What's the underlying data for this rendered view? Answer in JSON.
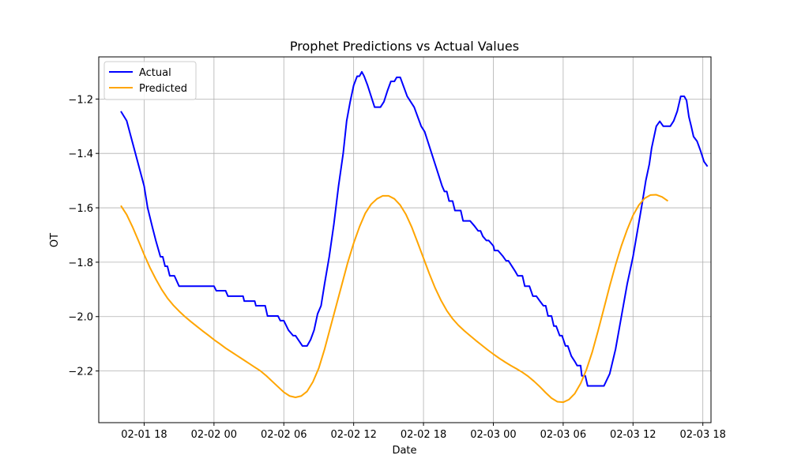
{
  "chart_data": {
    "type": "line",
    "title": "Prophet Predictions vs Actual Values",
    "xlabel": "Date",
    "ylabel": "OT",
    "grid": true,
    "legend_position": "top-left",
    "xlim": [
      14.1,
      66.7
    ],
    "ylim": [
      -2.39,
      -1.045
    ],
    "x_ticks": [
      {
        "value": 18,
        "label": "02-01 18"
      },
      {
        "value": 24,
        "label": "02-02 00"
      },
      {
        "value": 30,
        "label": "02-02 06"
      },
      {
        "value": 36,
        "label": "02-02 12"
      },
      {
        "value": 42,
        "label": "02-02 18"
      },
      {
        "value": 48,
        "label": "02-03 00"
      },
      {
        "value": 54,
        "label": "02-03 06"
      },
      {
        "value": 60,
        "label": "02-03 12"
      },
      {
        "value": 66,
        "label": "02-03 18"
      }
    ],
    "y_ticks": [
      {
        "value": -2.2,
        "label": "−2.2"
      },
      {
        "value": -2.0,
        "label": "−2.0"
      },
      {
        "value": -1.8,
        "label": "−1.8"
      },
      {
        "value": -1.6,
        "label": "−1.6"
      },
      {
        "value": -1.4,
        "label": "−1.4"
      },
      {
        "value": -1.2,
        "label": "−1.2"
      }
    ],
    "series": [
      {
        "name": "Actual",
        "color": "#0000ff",
        "points": [
          [
            16.0,
            -1.245
          ],
          [
            16.5,
            -1.28
          ],
          [
            17.0,
            -1.36
          ],
          [
            17.5,
            -1.44
          ],
          [
            18.0,
            -1.52
          ],
          [
            18.3,
            -1.6
          ],
          [
            18.7,
            -1.67
          ],
          [
            19.0,
            -1.72
          ],
          [
            19.4,
            -1.78
          ],
          [
            19.6,
            -1.78
          ],
          [
            19.8,
            -1.815
          ],
          [
            20.0,
            -1.815
          ],
          [
            20.2,
            -1.85
          ],
          [
            20.6,
            -1.85
          ],
          [
            21.0,
            -1.888
          ],
          [
            22.0,
            -1.888
          ],
          [
            23.0,
            -1.888
          ],
          [
            24.0,
            -1.888
          ],
          [
            24.2,
            -1.905
          ],
          [
            25.0,
            -1.905
          ],
          [
            25.2,
            -1.925
          ],
          [
            26.0,
            -1.925
          ],
          [
            26.5,
            -1.925
          ],
          [
            26.6,
            -1.943
          ],
          [
            27.0,
            -1.943
          ],
          [
            27.5,
            -1.943
          ],
          [
            27.6,
            -1.96
          ],
          [
            28.0,
            -1.96
          ],
          [
            28.4,
            -1.96
          ],
          [
            28.6,
            -1.998
          ],
          [
            29.0,
            -1.998
          ],
          [
            29.5,
            -1.998
          ],
          [
            29.7,
            -2.015
          ],
          [
            30.0,
            -2.015
          ],
          [
            30.4,
            -2.05
          ],
          [
            30.8,
            -2.07
          ],
          [
            31.0,
            -2.07
          ],
          [
            31.6,
            -2.108
          ],
          [
            32.0,
            -2.108
          ],
          [
            32.3,
            -2.085
          ],
          [
            32.6,
            -2.05
          ],
          [
            32.9,
            -1.99
          ],
          [
            33.2,
            -1.96
          ],
          [
            33.5,
            -1.88
          ],
          [
            33.9,
            -1.78
          ],
          [
            34.3,
            -1.66
          ],
          [
            34.7,
            -1.52
          ],
          [
            35.1,
            -1.4
          ],
          [
            35.4,
            -1.28
          ],
          [
            35.7,
            -1.21
          ],
          [
            36.0,
            -1.15
          ],
          [
            36.3,
            -1.116
          ],
          [
            36.5,
            -1.116
          ],
          [
            36.7,
            -1.1
          ],
          [
            36.9,
            -1.116
          ],
          [
            37.2,
            -1.15
          ],
          [
            37.5,
            -1.19
          ],
          [
            37.8,
            -1.23
          ],
          [
            38.3,
            -1.23
          ],
          [
            38.6,
            -1.21
          ],
          [
            38.9,
            -1.17
          ],
          [
            39.2,
            -1.135
          ],
          [
            39.5,
            -1.135
          ],
          [
            39.7,
            -1.12
          ],
          [
            40.0,
            -1.12
          ],
          [
            40.3,
            -1.155
          ],
          [
            40.6,
            -1.19
          ],
          [
            40.9,
            -1.21
          ],
          [
            41.2,
            -1.23
          ],
          [
            41.5,
            -1.265
          ],
          [
            41.8,
            -1.3
          ],
          [
            42.1,
            -1.32
          ],
          [
            42.4,
            -1.36
          ],
          [
            42.7,
            -1.4
          ],
          [
            43.0,
            -1.44
          ],
          [
            43.3,
            -1.48
          ],
          [
            43.6,
            -1.52
          ],
          [
            43.8,
            -1.54
          ],
          [
            44.0,
            -1.54
          ],
          [
            44.2,
            -1.575
          ],
          [
            44.5,
            -1.575
          ],
          [
            44.7,
            -1.61
          ],
          [
            45.2,
            -1.61
          ],
          [
            45.4,
            -1.648
          ],
          [
            46.0,
            -1.648
          ],
          [
            46.4,
            -1.668
          ],
          [
            46.7,
            -1.685
          ],
          [
            46.9,
            -1.685
          ],
          [
            47.1,
            -1.705
          ],
          [
            47.4,
            -1.72
          ],
          [
            47.6,
            -1.72
          ],
          [
            48.0,
            -1.74
          ],
          [
            48.1,
            -1.757
          ],
          [
            48.4,
            -1.757
          ],
          [
            48.8,
            -1.777
          ],
          [
            49.1,
            -1.795
          ],
          [
            49.3,
            -1.795
          ],
          [
            49.6,
            -1.815
          ],
          [
            49.9,
            -1.835
          ],
          [
            50.1,
            -1.85
          ],
          [
            50.5,
            -1.85
          ],
          [
            50.7,
            -1.888
          ],
          [
            51.1,
            -1.888
          ],
          [
            51.4,
            -1.925
          ],
          [
            51.7,
            -1.925
          ],
          [
            52.0,
            -1.943
          ],
          [
            52.3,
            -1.96
          ],
          [
            52.5,
            -1.96
          ],
          [
            52.7,
            -1.998
          ],
          [
            53.0,
            -1.998
          ],
          [
            53.2,
            -2.035
          ],
          [
            53.4,
            -2.035
          ],
          [
            53.7,
            -2.07
          ],
          [
            53.9,
            -2.07
          ],
          [
            54.2,
            -2.108
          ],
          [
            54.4,
            -2.108
          ],
          [
            54.7,
            -2.145
          ],
          [
            55.0,
            -2.165
          ],
          [
            55.2,
            -2.18
          ],
          [
            55.5,
            -2.18
          ],
          [
            55.6,
            -2.218
          ],
          [
            55.9,
            -2.218
          ],
          [
            56.1,
            -2.255
          ],
          [
            56.5,
            -2.255
          ],
          [
            57.0,
            -2.255
          ],
          [
            57.5,
            -2.255
          ],
          [
            58.0,
            -2.21
          ],
          [
            58.5,
            -2.12
          ],
          [
            59.0,
            -2.0
          ],
          [
            59.5,
            -1.88
          ],
          [
            60.0,
            -1.78
          ],
          [
            60.4,
            -1.68
          ],
          [
            60.8,
            -1.58
          ],
          [
            61.1,
            -1.5
          ],
          [
            61.4,
            -1.44
          ],
          [
            61.6,
            -1.38
          ],
          [
            61.8,
            -1.34
          ],
          [
            62.0,
            -1.3
          ],
          [
            62.3,
            -1.282
          ],
          [
            62.6,
            -1.3
          ],
          [
            62.9,
            -1.3
          ],
          [
            63.2,
            -1.3
          ],
          [
            63.5,
            -1.28
          ],
          [
            63.8,
            -1.245
          ],
          [
            64.1,
            -1.19
          ],
          [
            64.4,
            -1.19
          ],
          [
            64.6,
            -1.205
          ],
          [
            64.8,
            -1.265
          ],
          [
            65.0,
            -1.3
          ],
          [
            65.2,
            -1.338
          ],
          [
            65.5,
            -1.355
          ],
          [
            65.8,
            -1.39
          ],
          [
            66.1,
            -1.43
          ],
          [
            66.4,
            -1.448
          ]
        ]
      },
      {
        "name": "Predicted",
        "color": "#ffa500",
        "points": [
          [
            16.0,
            -1.592
          ],
          [
            16.5,
            -1.625
          ],
          [
            17.0,
            -1.67
          ],
          [
            17.5,
            -1.72
          ],
          [
            18.0,
            -1.772
          ],
          [
            18.5,
            -1.82
          ],
          [
            19.0,
            -1.862
          ],
          [
            19.5,
            -1.9
          ],
          [
            20.0,
            -1.932
          ],
          [
            20.5,
            -1.958
          ],
          [
            21.0,
            -1.98
          ],
          [
            21.5,
            -2.0
          ],
          [
            22.0,
            -2.018
          ],
          [
            22.5,
            -2.035
          ],
          [
            23.0,
            -2.052
          ],
          [
            23.5,
            -2.068
          ],
          [
            24.0,
            -2.085
          ],
          [
            24.5,
            -2.1
          ],
          [
            25.0,
            -2.116
          ],
          [
            25.5,
            -2.13
          ],
          [
            26.0,
            -2.144
          ],
          [
            26.5,
            -2.158
          ],
          [
            27.0,
            -2.172
          ],
          [
            27.5,
            -2.186
          ],
          [
            28.0,
            -2.2
          ],
          [
            28.5,
            -2.218
          ],
          [
            29.0,
            -2.238
          ],
          [
            29.5,
            -2.258
          ],
          [
            30.0,
            -2.278
          ],
          [
            30.5,
            -2.292
          ],
          [
            31.0,
            -2.297
          ],
          [
            31.5,
            -2.292
          ],
          [
            32.0,
            -2.275
          ],
          [
            32.5,
            -2.24
          ],
          [
            33.0,
            -2.19
          ],
          [
            33.5,
            -2.12
          ],
          [
            34.0,
            -2.04
          ],
          [
            34.5,
            -1.96
          ],
          [
            35.0,
            -1.88
          ],
          [
            35.5,
            -1.8
          ],
          [
            36.0,
            -1.73
          ],
          [
            36.5,
            -1.67
          ],
          [
            37.0,
            -1.62
          ],
          [
            37.5,
            -1.587
          ],
          [
            38.0,
            -1.567
          ],
          [
            38.5,
            -1.556
          ],
          [
            39.0,
            -1.556
          ],
          [
            39.5,
            -1.567
          ],
          [
            40.0,
            -1.59
          ],
          [
            40.5,
            -1.625
          ],
          [
            41.0,
            -1.672
          ],
          [
            41.5,
            -1.728
          ],
          [
            42.0,
            -1.785
          ],
          [
            42.5,
            -1.842
          ],
          [
            43.0,
            -1.895
          ],
          [
            43.5,
            -1.94
          ],
          [
            44.0,
            -1.978
          ],
          [
            44.5,
            -2.008
          ],
          [
            45.0,
            -2.032
          ],
          [
            45.5,
            -2.052
          ],
          [
            46.0,
            -2.07
          ],
          [
            46.5,
            -2.088
          ],
          [
            47.0,
            -2.105
          ],
          [
            47.5,
            -2.122
          ],
          [
            48.0,
            -2.138
          ],
          [
            48.5,
            -2.153
          ],
          [
            49.0,
            -2.167
          ],
          [
            49.5,
            -2.18
          ],
          [
            50.0,
            -2.192
          ],
          [
            50.5,
            -2.205
          ],
          [
            51.0,
            -2.22
          ],
          [
            51.5,
            -2.238
          ],
          [
            52.0,
            -2.258
          ],
          [
            52.5,
            -2.28
          ],
          [
            53.0,
            -2.3
          ],
          [
            53.5,
            -2.313
          ],
          [
            54.0,
            -2.315
          ],
          [
            54.5,
            -2.305
          ],
          [
            55.0,
            -2.283
          ],
          [
            55.5,
            -2.246
          ],
          [
            56.0,
            -2.195
          ],
          [
            56.5,
            -2.13
          ],
          [
            57.0,
            -2.052
          ],
          [
            57.5,
            -1.97
          ],
          [
            58.0,
            -1.887
          ],
          [
            58.5,
            -1.81
          ],
          [
            59.0,
            -1.74
          ],
          [
            59.5,
            -1.68
          ],
          [
            60.0,
            -1.628
          ],
          [
            60.5,
            -1.59
          ],
          [
            61.0,
            -1.565
          ],
          [
            61.5,
            -1.553
          ],
          [
            62.0,
            -1.552
          ],
          [
            62.5,
            -1.56
          ],
          [
            63.0,
            -1.575
          ]
        ]
      }
    ]
  }
}
